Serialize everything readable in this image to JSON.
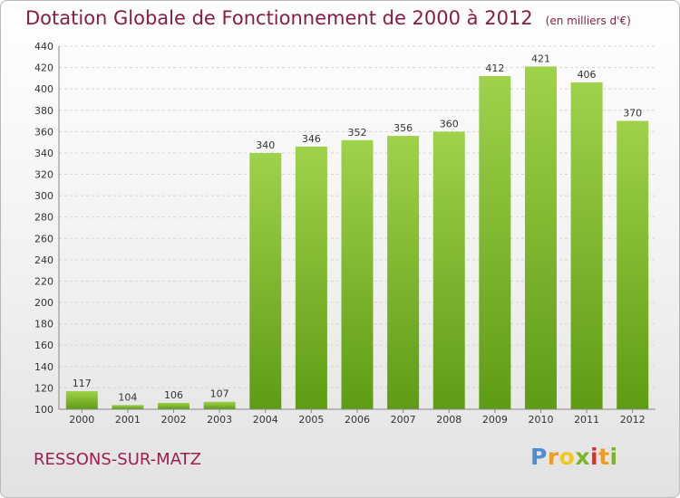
{
  "chart_data": {
    "type": "bar",
    "title": "Dotation Globale de Fonctionnement de 2000 à 2012",
    "subtitle": "(en milliers d'€)",
    "categories": [
      "2000",
      "2001",
      "2002",
      "2003",
      "2004",
      "2005",
      "2006",
      "2007",
      "2008",
      "2009",
      "2010",
      "2011",
      "2012"
    ],
    "values": [
      117,
      104,
      106,
      107,
      340,
      346,
      352,
      356,
      360,
      412,
      421,
      406,
      370
    ],
    "ylim": [
      100,
      440
    ],
    "yticks": [
      100,
      120,
      140,
      160,
      180,
      200,
      220,
      240,
      260,
      280,
      300,
      320,
      340,
      360,
      380,
      400,
      420,
      440
    ],
    "grid": true,
    "colors": {
      "bar_top": "#9fd24a",
      "bar_bottom": "#5e9c14",
      "title": "#8a1c44",
      "label": "#333333"
    }
  },
  "footer": {
    "commune": "RESSONS-SUR-MATZ"
  },
  "logo": {
    "text": "Proxiti"
  }
}
